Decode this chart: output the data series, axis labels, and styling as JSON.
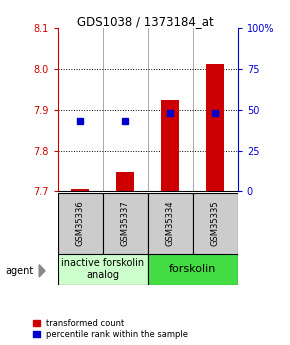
{
  "title": "GDS1038 / 1373184_at",
  "samples": [
    "GSM35336",
    "GSM35337",
    "GSM35334",
    "GSM35335"
  ],
  "bar_values": [
    7.705,
    7.748,
    7.923,
    8.01
  ],
  "bar_base": 7.7,
  "percentile_values": [
    43,
    43,
    48,
    48
  ],
  "ylim": [
    7.7,
    8.1
  ],
  "yticks_left": [
    7.7,
    7.8,
    7.9,
    8.0,
    8.1
  ],
  "yticks_right": [
    0,
    25,
    50,
    75,
    100
  ],
  "bar_color": "#cc0000",
  "dot_color": "#0000cc",
  "bar_width": 0.4,
  "group0_label": "inactive forskolin\nanalog",
  "group0_color": "#ccffcc",
  "group1_label": "forskolin",
  "group1_color": "#44dd44",
  "agent_label": "agent",
  "legend_red": "transformed count",
  "legend_blue": "percentile rank within the sample",
  "label_color_left": "#cc0000",
  "label_color_right": "#0000cc",
  "title_fontsize": 8.5,
  "tick_fontsize": 7,
  "sample_fontsize": 6,
  "legend_fontsize": 6,
  "group_fontsize": 7
}
